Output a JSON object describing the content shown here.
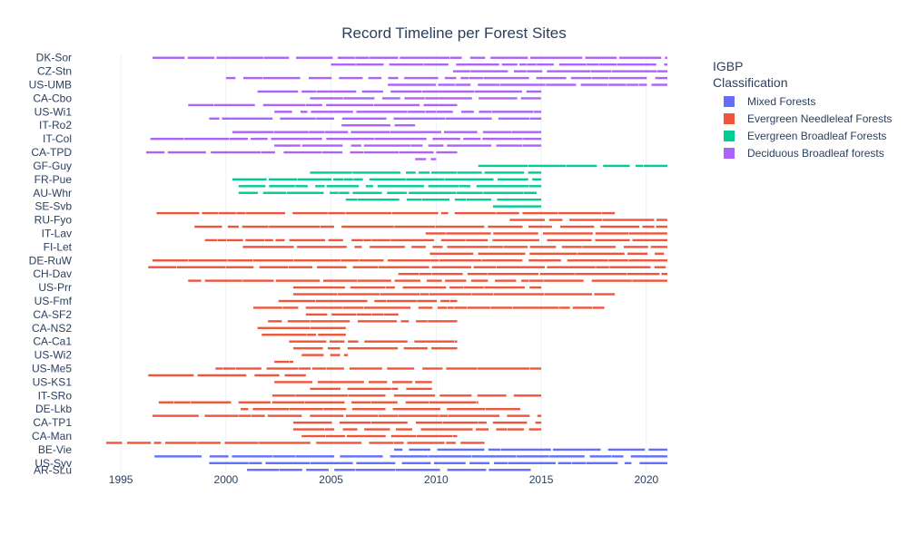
{
  "chart_data": {
    "type": "timeline",
    "title": "Record Timeline per Forest Sites",
    "xlabel": "",
    "ylabel": "",
    "xlim": [
      1994,
      2021
    ],
    "x_ticks": [
      1995,
      2000,
      2005,
      2010,
      2015,
      2020
    ],
    "grid": true,
    "legend": {
      "title_lines": [
        "IGBP",
        "Classification"
      ],
      "placement": "right",
      "entries": [
        {
          "name": "Mixed Forests",
          "color": "#636efa"
        },
        {
          "name": "Evergreen Needleleaf Forests",
          "color": "#ef553b"
        },
        {
          "name": "Evergreen Broadleaf Forests",
          "color": "#00cc96"
        },
        {
          "name": "Deciduous Broadleaf forests",
          "color": "#ab63fa"
        }
      ]
    },
    "y_tick_labels": [
      "DK-Sor",
      "CZ-Stn",
      "US-UMB",
      "CA-Cbo",
      "US-Wi1",
      "IT-Ro2",
      "IT-Col",
      "CA-TPD",
      "GF-Guy",
      "FR-Pue",
      "AU-Whr",
      "SE-Svb",
      "RU-Fyo",
      "IT-Lav",
      "FI-Let",
      "DE-RuW",
      "CH-Dav",
      "US-Prr",
      "US-Fmf",
      "CA-SF2",
      "CA-NS2",
      "CA-Ca1",
      "US-Wi2",
      "US-Me5",
      "US-KS1",
      "IT-SRo",
      "DE-Lkb",
      "CA-TP1",
      "CA-Man",
      "BE-Vie",
      "US-Syv",
      "AR-SLu"
    ],
    "row_count": 62,
    "series": [
      {
        "name": "Deciduous Broadleaf forests",
        "rows": [
          {
            "site": "DK-Sor",
            "row": 0,
            "start": 1996.5,
            "end": 2021.0
          },
          {
            "site": "",
            "row": 1,
            "start": 2005.0,
            "end": 2021.0
          },
          {
            "site": "CZ-Stn",
            "row": 2,
            "start": 2010.8,
            "end": 2021.0
          },
          {
            "site": "",
            "row": 3,
            "start": 2000.0,
            "end": 2021.0
          },
          {
            "site": "US-UMB",
            "row": 4,
            "start": 2007.7,
            "end": 2021.0
          },
          {
            "site": "",
            "row": 5,
            "start": 2001.5,
            "end": 2015.0
          },
          {
            "site": "CA-Cbo",
            "row": 6,
            "start": 2004.0,
            "end": 2015.0
          },
          {
            "site": "",
            "row": 7,
            "start": 1998.2,
            "end": 2011.0
          },
          {
            "site": "US-Wi1",
            "row": 8,
            "start": 2002.3,
            "end": 2015.0
          },
          {
            "site": "",
            "row": 9,
            "start": 1999.2,
            "end": 2015.0
          },
          {
            "site": "IT-Ro2",
            "row": 10,
            "start": 2005.5,
            "end": 2009.0
          },
          {
            "site": "",
            "row": 11,
            "start": 2000.3,
            "end": 2015.0
          },
          {
            "site": "IT-Col",
            "row": 12,
            "start": 1996.4,
            "end": 2015.0
          },
          {
            "site": "",
            "row": 13,
            "start": 2002.3,
            "end": 2015.0
          },
          {
            "site": "CA-TPD",
            "row": 14,
            "start": 1996.2,
            "end": 2011.0
          },
          {
            "site": "",
            "row": 15,
            "start": 2009.0,
            "end": 2010.0
          }
        ]
      },
      {
        "name": "Evergreen Broadleaf Forests",
        "rows": [
          {
            "site": "GF-Guy",
            "row": 16,
            "start": 2012.0,
            "end": 2021.0
          },
          {
            "site": "",
            "row": 17,
            "start": 2004.0,
            "end": 2015.0
          },
          {
            "site": "FR-Pue",
            "row": 18,
            "start": 2000.3,
            "end": 2015.0
          },
          {
            "site": "",
            "row": 19,
            "start": 2000.6,
            "end": 2015.0
          },
          {
            "site": "AU-Whr",
            "row": 20,
            "start": 2000.6,
            "end": 2015.0
          },
          {
            "site": "",
            "row": 21,
            "start": 2005.7,
            "end": 2015.0
          },
          {
            "site": "",
            "row": 22,
            "start": 2012.7,
            "end": 2015.0
          }
        ]
      },
      {
        "name": "Evergreen Needleleaf Forests",
        "rows": [
          {
            "site": "SE-Svb",
            "row": 23,
            "start": 1996.7,
            "end": 2018.5
          },
          {
            "site": "",
            "row": 24,
            "start": 2013.5,
            "end": 2021.0
          },
          {
            "site": "RU-Fyo",
            "row": 25,
            "start": 1998.5,
            "end": 2021.0
          },
          {
            "site": "",
            "row": 26,
            "start": 2009.5,
            "end": 2021.0
          },
          {
            "site": "IT-Lav",
            "row": 27,
            "start": 1999.0,
            "end": 2021.0
          },
          {
            "site": "",
            "row": 28,
            "start": 2000.8,
            "end": 2021.0
          },
          {
            "site": "FI-Let",
            "row": 29,
            "start": 2009.7,
            "end": 2021.0
          },
          {
            "site": "",
            "row": 30,
            "start": 1996.5,
            "end": 2021.0
          },
          {
            "site": "DE-RuW",
            "row": 31,
            "start": 1996.3,
            "end": 2021.0
          },
          {
            "site": "",
            "row": 32,
            "start": 2008.2,
            "end": 2021.0
          },
          {
            "site": "CH-Dav",
            "row": 33,
            "start": 1998.2,
            "end": 2021.0
          },
          {
            "site": "",
            "row": 34,
            "start": 2003.2,
            "end": 2015.0
          },
          {
            "site": "US-Prr",
            "row": 35,
            "start": 2003.2,
            "end": 2018.5
          },
          {
            "site": "",
            "row": 36,
            "start": 2002.5,
            "end": 2011.0
          },
          {
            "site": "US-Fmf",
            "row": 37,
            "start": 2001.3,
            "end": 2018.0
          },
          {
            "site": "",
            "row": 38,
            "start": 2003.8,
            "end": 2008.2
          },
          {
            "site": "CA-SF2",
            "row": 39,
            "start": 2002.0,
            "end": 2011.0
          },
          {
            "site": "",
            "row": 40,
            "start": 2001.5,
            "end": 2005.7
          },
          {
            "site": "CA-NS2",
            "row": 41,
            "start": 2001.7,
            "end": 2005.7
          },
          {
            "site": "",
            "row": 42,
            "start": 2003.0,
            "end": 2011.0
          },
          {
            "site": "CA-Ca1",
            "row": 43,
            "start": 2003.2,
            "end": 2011.0
          },
          {
            "site": "",
            "row": 44,
            "start": 2003.6,
            "end": 2005.8
          },
          {
            "site": "US-Wi2",
            "row": 45,
            "start": 2002.3,
            "end": 2003.2
          },
          {
            "site": "",
            "row": 46,
            "start": 1999.5,
            "end": 2015.0
          },
          {
            "site": "US-Me5",
            "row": 47,
            "start": 1996.3,
            "end": 2003.8
          },
          {
            "site": "",
            "row": 48,
            "start": 2002.3,
            "end": 2009.8
          },
          {
            "site": "US-KS1",
            "row": 49,
            "start": 2004.0,
            "end": 2009.8
          },
          {
            "site": "",
            "row": 50,
            "start": 2002.2,
            "end": 2015.0
          },
          {
            "site": "IT-SRo",
            "row": 51,
            "start": 1996.8,
            "end": 2012.0
          },
          {
            "site": "",
            "row": 52,
            "start": 2000.7,
            "end": 2014.0
          },
          {
            "site": "DE-Lkb",
            "row": 53,
            "start": 1996.5,
            "end": 2015.0
          },
          {
            "site": "",
            "row": 54,
            "start": 2003.2,
            "end": 2015.0
          },
          {
            "site": "CA-TP1",
            "row": 55,
            "start": 2003.2,
            "end": 2015.0
          },
          {
            "site": "",
            "row": 56,
            "start": 2003.6,
            "end": 2011.0
          },
          {
            "site": "CA-Man",
            "row": 57,
            "start": 1994.3,
            "end": 2012.3
          }
        ]
      },
      {
        "name": "Mixed Forests",
        "rows": [
          {
            "site": "",
            "row": 58,
            "start": 2008.0,
            "end": 2021.0
          },
          {
            "site": "BE-Vie",
            "row": 59,
            "start": 1996.6,
            "end": 2021.0
          },
          {
            "site": "",
            "row": 60,
            "start": 1999.2,
            "end": 2021.0
          },
          {
            "site": "US-Syv",
            "row": 61,
            "start": 2001.0,
            "end": 2014.5
          }
        ]
      }
    ]
  }
}
